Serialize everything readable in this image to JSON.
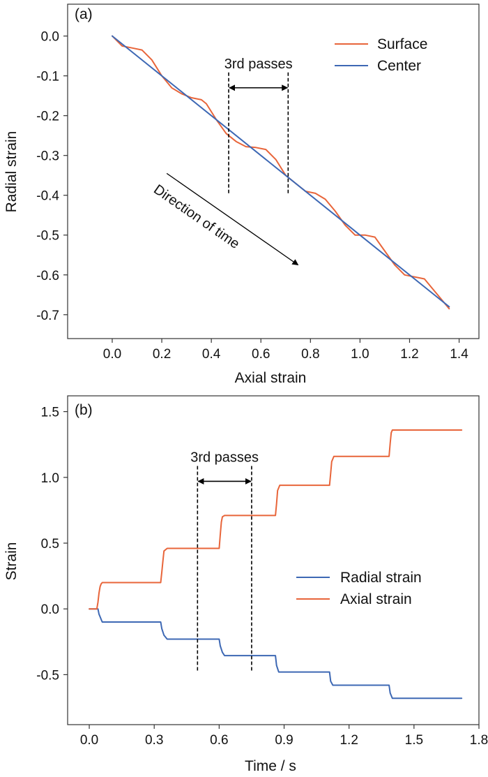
{
  "colors": {
    "surface": "#e8653a",
    "center": "#3d68b4",
    "radial": "#3d68b4",
    "axial": "#e8653a",
    "axis": "#333333",
    "annotation": "#000000"
  },
  "chart_data": [
    {
      "type": "line",
      "panel_label": "(a)",
      "title": "",
      "xlabel": "Axial strain",
      "ylabel": "Radial strain",
      "xlim": [
        -0.18,
        1.48
      ],
      "ylim": [
        -0.76,
        0.08
      ],
      "xticks": [
        0.0,
        0.2,
        0.4,
        0.6,
        0.8,
        1.0,
        1.2,
        1.4
      ],
      "xtick_labels": [
        "0.0",
        "0.2",
        "0.4",
        "0.6",
        "0.8",
        "1.0",
        "1.2",
        "1.4"
      ],
      "yticks": [
        0.0,
        -0.1,
        -0.2,
        -0.3,
        -0.4,
        -0.5,
        -0.6,
        -0.7
      ],
      "ytick_labels": [
        "0.0",
        "-0.1",
        "-0.2",
        "-0.3",
        "-0.4",
        "-0.5",
        "-0.6",
        "-0.7"
      ],
      "legend_position": "top-right",
      "series": [
        {
          "name": "Surface",
          "color": "#e8653a",
          "x": [
            0.0,
            0.04,
            0.08,
            0.12,
            0.16,
            0.2,
            0.24,
            0.28,
            0.32,
            0.36,
            0.38,
            0.42,
            0.46,
            0.5,
            0.54,
            0.58,
            0.62,
            0.66,
            0.7,
            0.74,
            0.78,
            0.82,
            0.86,
            0.9,
            0.94,
            0.98,
            1.02,
            1.06,
            1.1,
            1.14,
            1.18,
            1.22,
            1.26,
            1.3,
            1.36
          ],
          "y": [
            0.0,
            -0.025,
            -0.03,
            -0.035,
            -0.06,
            -0.1,
            -0.13,
            -0.145,
            -0.155,
            -0.16,
            -0.17,
            -0.21,
            -0.245,
            -0.265,
            -0.278,
            -0.28,
            -0.285,
            -0.31,
            -0.35,
            -0.37,
            -0.39,
            -0.395,
            -0.41,
            -0.44,
            -0.475,
            -0.5,
            -0.5,
            -0.505,
            -0.54,
            -0.575,
            -0.6,
            -0.605,
            -0.61,
            -0.64,
            -0.685
          ]
        },
        {
          "name": "Center",
          "color": "#3d68b4",
          "x": [
            0.0,
            1.36
          ],
          "y": [
            0.0,
            -0.68
          ]
        }
      ],
      "annotations": [
        {
          "type": "bracket",
          "text": "3rd passes",
          "x1": 0.47,
          "x2": 0.71,
          "y_arrow": -0.13,
          "y_bottom": -0.4
        },
        {
          "type": "arrow",
          "text": "Direction of time",
          "x1": 0.22,
          "y1": -0.345,
          "x2": 0.75,
          "y2": -0.575
        }
      ]
    },
    {
      "type": "line",
      "panel_label": "(b)",
      "title": "",
      "xlabel": "Time / s",
      "ylabel": "Strain",
      "xlim": [
        -0.1,
        1.8
      ],
      "ylim": [
        -0.88,
        1.62
      ],
      "xticks": [
        0.0,
        0.3,
        0.6,
        0.9,
        1.2,
        1.5,
        1.8
      ],
      "xtick_labels": [
        "0.0",
        "0.3",
        "0.6",
        "0.9",
        "1.2",
        "1.5",
        "1.8"
      ],
      "yticks": [
        -0.5,
        0.0,
        0.5,
        1.0,
        1.5
      ],
      "ytick_labels": [
        "-0.5",
        "0.0",
        "0.5",
        "1.0",
        "1.5"
      ],
      "legend_position": "center-right",
      "series": [
        {
          "name": "Radial strain",
          "color": "#3d68b4",
          "x": [
            0.0,
            0.04,
            0.045,
            0.05,
            0.055,
            0.06,
            0.33,
            0.335,
            0.345,
            0.36,
            0.6,
            0.605,
            0.615,
            0.625,
            0.86,
            0.865,
            0.875,
            1.11,
            1.115,
            1.125,
            1.385,
            1.39,
            1.4,
            1.72
          ],
          "y": [
            0.0,
            0.0,
            -0.04,
            -0.06,
            -0.08,
            -0.1,
            -0.1,
            -0.15,
            -0.2,
            -0.23,
            -0.23,
            -0.28,
            -0.33,
            -0.355,
            -0.355,
            -0.43,
            -0.48,
            -0.48,
            -0.55,
            -0.58,
            -0.58,
            -0.64,
            -0.68,
            -0.68
          ]
        },
        {
          "name": "Axial strain",
          "color": "#e8653a",
          "x": [
            0.0,
            0.035,
            0.04,
            0.045,
            0.05,
            0.055,
            0.06,
            0.33,
            0.335,
            0.34,
            0.345,
            0.36,
            0.6,
            0.605,
            0.61,
            0.615,
            0.625,
            0.86,
            0.865,
            0.87,
            0.88,
            1.11,
            1.115,
            1.12,
            1.13,
            1.385,
            1.39,
            1.395,
            1.4,
            1.72
          ],
          "y": [
            0.0,
            0.0,
            0.05,
            0.12,
            0.17,
            0.19,
            0.2,
            0.2,
            0.28,
            0.36,
            0.44,
            0.46,
            0.46,
            0.56,
            0.66,
            0.7,
            0.71,
            0.71,
            0.8,
            0.9,
            0.94,
            0.94,
            1.03,
            1.12,
            1.16,
            1.16,
            1.26,
            1.34,
            1.36,
            1.36
          ]
        }
      ],
      "annotations": [
        {
          "type": "bracket",
          "text": "3rd passes",
          "x1": 0.5,
          "x2": 0.75,
          "y_arrow": 0.97,
          "y_bottom": -0.47
        }
      ]
    }
  ]
}
